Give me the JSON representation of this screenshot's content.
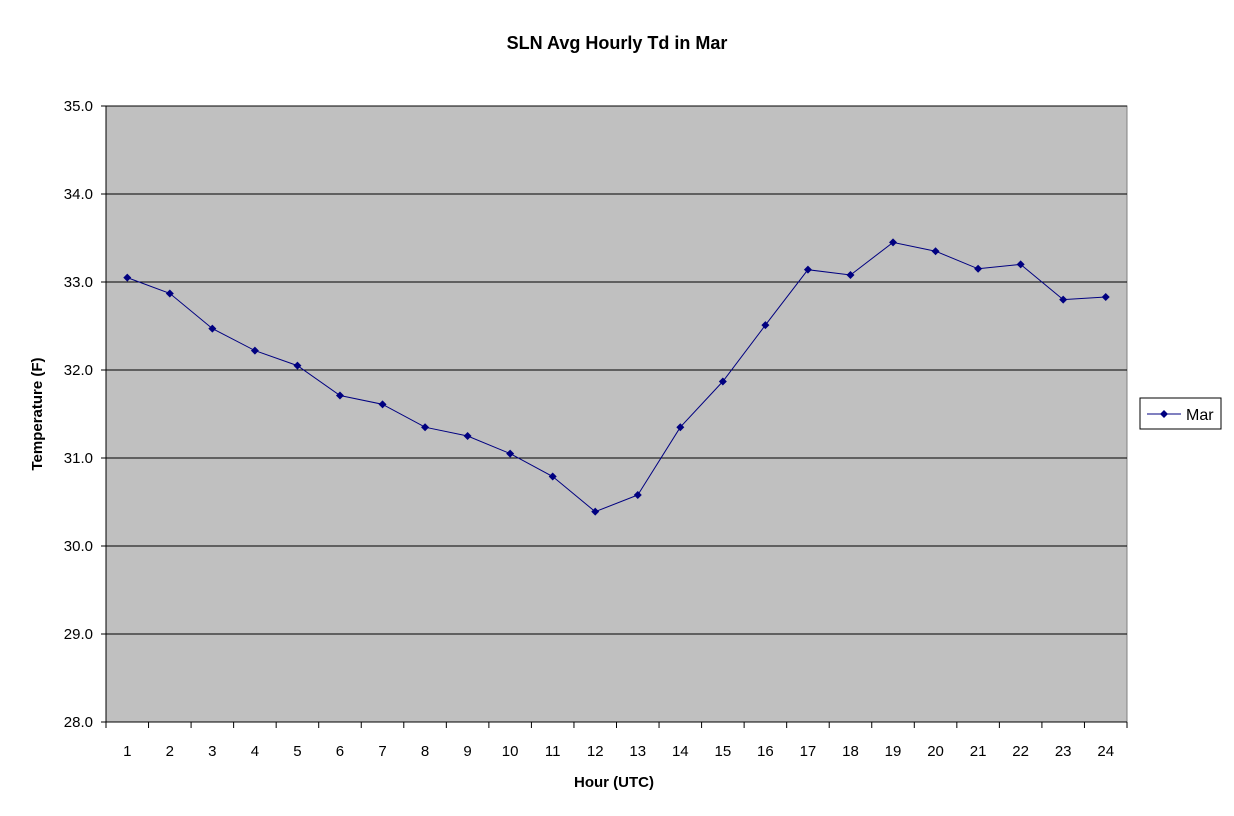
{
  "chart_data": {
    "type": "line",
    "title": "SLN Avg Hourly Td in Mar",
    "xlabel": "Hour (UTC)",
    "ylabel": "Temperature (F)",
    "categories": [
      "1",
      "2",
      "3",
      "4",
      "5",
      "6",
      "7",
      "8",
      "9",
      "10",
      "11",
      "12",
      "13",
      "14",
      "15",
      "16",
      "17",
      "18",
      "19",
      "20",
      "21",
      "22",
      "23",
      "24"
    ],
    "ylim": [
      28.0,
      35.0
    ],
    "yticks": [
      "28.0",
      "29.0",
      "30.0",
      "31.0",
      "32.0",
      "33.0",
      "34.0",
      "35.0"
    ],
    "grid": true,
    "legend_position": "right",
    "plot_background": "#c0c0c0",
    "series": [
      {
        "name": "Mar",
        "color": "#000080",
        "marker": "diamond",
        "values": [
          33.05,
          32.87,
          32.47,
          32.22,
          32.05,
          31.71,
          31.61,
          31.35,
          31.25,
          31.05,
          30.79,
          30.39,
          30.58,
          31.35,
          31.87,
          32.51,
          33.14,
          33.08,
          33.45,
          33.35,
          33.15,
          33.2,
          32.8,
          32.83
        ]
      }
    ]
  }
}
